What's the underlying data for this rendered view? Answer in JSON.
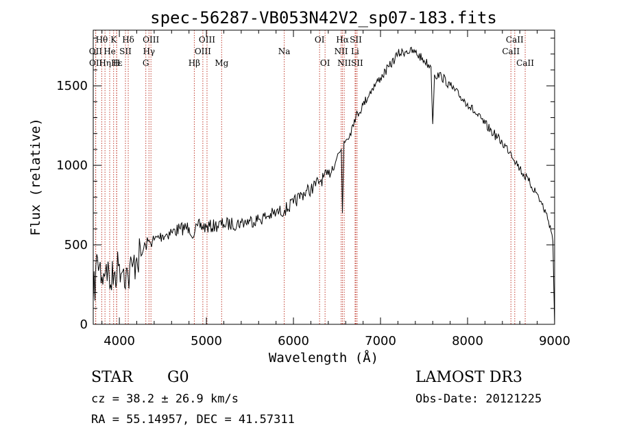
{
  "chart_data": {
    "type": "line",
    "title": "spec-56287-VB053N42V2_sp07-183.fits",
    "xlabel": "Wavelength (Å)",
    "ylabel": "Flux (relative)",
    "xlim": [
      3700,
      9000
    ],
    "ylim": [
      0,
      1850
    ],
    "xticks": [
      4000,
      5000,
      6000,
      7000,
      8000,
      9000
    ],
    "yticks": [
      0,
      500,
      1000,
      1500
    ],
    "series": [
      {
        "name": "spectrum",
        "color": "#000000",
        "x": [
          3700,
          3750,
          3800,
          3850,
          3900,
          3950,
          4000,
          4050,
          4100,
          4150,
          4200,
          4250,
          4300,
          4350,
          4400,
          4500,
          4600,
          4700,
          4800,
          4860,
          4900,
          5000,
          5100,
          5200,
          5300,
          5400,
          5500,
          5600,
          5700,
          5800,
          5900,
          6000,
          6100,
          6200,
          6300,
          6400,
          6500,
          6550,
          6563,
          6580,
          6650,
          6700,
          6800,
          6900,
          7000,
          7100,
          7200,
          7300,
          7400,
          7500,
          7580,
          7600,
          7620,
          7700,
          7800,
          7900,
          8000,
          8100,
          8200,
          8300,
          8400,
          8500,
          8600,
          8700,
          8800,
          8900,
          8950,
          8980,
          9000
        ],
        "y": [
          150,
          420,
          300,
          380,
          250,
          330,
          380,
          350,
          300,
          360,
          420,
          430,
          500,
          520,
          530,
          560,
          580,
          600,
          610,
          560,
          620,
          610,
          620,
          630,
          630,
          640,
          650,
          660,
          680,
          700,
          720,
          760,
          820,
          850,
          900,
          940,
          1050,
          1100,
          700,
          1150,
          1200,
          1290,
          1380,
          1480,
          1550,
          1620,
          1700,
          1720,
          1710,
          1660,
          1620,
          1260,
          1570,
          1560,
          1500,
          1440,
          1390,
          1320,
          1260,
          1200,
          1140,
          1080,
          980,
          900,
          820,
          700,
          620,
          520,
          0
        ]
      }
    ],
    "lines": [
      {
        "label": "Hθ",
        "wave": 3798,
        "row": 1
      },
      {
        "label": "OII",
        "wave": 3727,
        "row": 2
      },
      {
        "label": "OII",
        "wave": 3729,
        "row": 3
      },
      {
        "label": "Hε",
        "wave": 3970,
        "row": 3
      },
      {
        "label": "K",
        "wave": 3934,
        "row": 1
      },
      {
        "label": "He",
        "wave": 3889,
        "row": 2
      },
      {
        "label": "Hη",
        "wave": 3835,
        "row": 3
      },
      {
        "label": "H",
        "wave": 3968,
        "row": 3
      },
      {
        "label": "Hδ",
        "wave": 4102,
        "row": 1
      },
      {
        "label": "SII",
        "wave": 4070,
        "row": 2
      },
      {
        "label": "OIII",
        "wave": 4363,
        "row": 1
      },
      {
        "label": "Hγ",
        "wave": 4340,
        "row": 2
      },
      {
        "label": "G",
        "wave": 4304,
        "row": 3
      },
      {
        "label": "Hβ",
        "wave": 4861,
        "row": 3
      },
      {
        "label": "OIII",
        "wave": 5007,
        "row": 1
      },
      {
        "label": "OIII",
        "wave": 4959,
        "row": 2
      },
      {
        "label": "Mg",
        "wave": 5175,
        "row": 3
      },
      {
        "label": "Na",
        "wave": 5894,
        "row": 2
      },
      {
        "label": "OI",
        "wave": 6300,
        "row": 1
      },
      {
        "label": "OI",
        "wave": 6363,
        "row": 3
      },
      {
        "label": "Hα",
        "wave": 6563,
        "row": 1
      },
      {
        "label": "SII",
        "wave": 6716,
        "row": 1
      },
      {
        "label": "NII",
        "wave": 6548,
        "row": 2
      },
      {
        "label": "Li",
        "wave": 6708,
        "row": 2
      },
      {
        "label": "NII",
        "wave": 6583,
        "row": 3
      },
      {
        "label": "SII",
        "wave": 6731,
        "row": 3
      },
      {
        "label": "CaII",
        "wave": 8542,
        "row": 1
      },
      {
        "label": "CaII",
        "wave": 8498,
        "row": 2
      },
      {
        "label": "CaII",
        "wave": 8662,
        "row": 3
      }
    ]
  },
  "info": {
    "class": "STAR",
    "subclass": "G0",
    "survey": "LAMOST DR3",
    "cz": "cz = 38.2 ± 26.9 km/s",
    "obs_date": "Obs-Date: 20121225",
    "radec": "RA =  55.14957, DEC =  41.57311"
  },
  "colors": {
    "spectrum": "#000000",
    "line_markers": "#c0392b",
    "axes": "#000000"
  }
}
